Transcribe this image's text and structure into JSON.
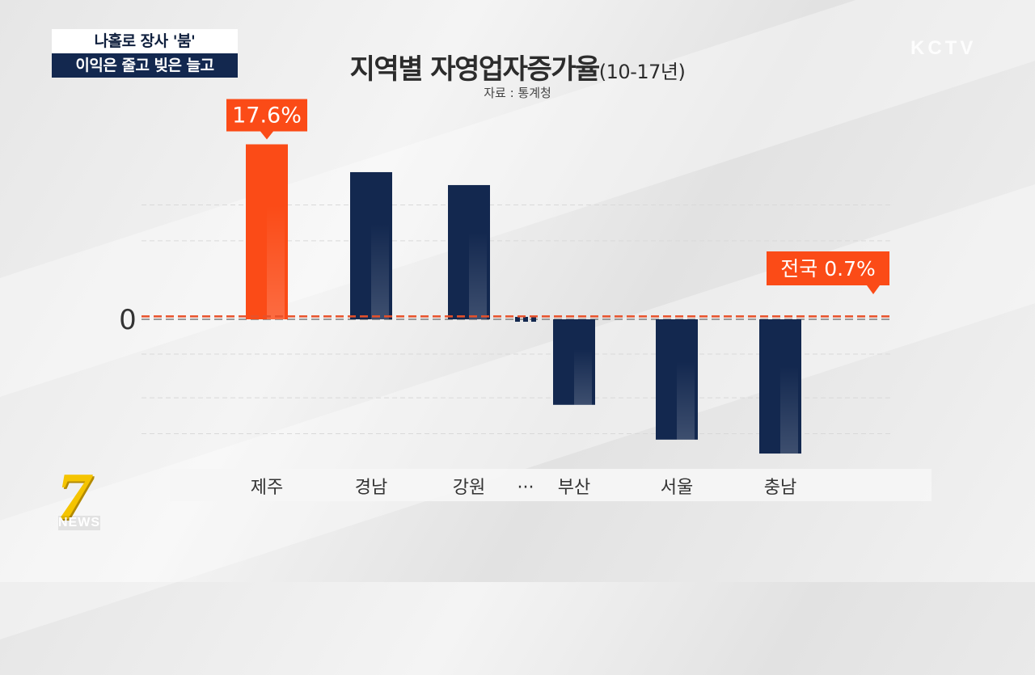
{
  "caption": {
    "line1": "나홀로 장사 '붐'",
    "line2": "이익은 줄고 빚은 늘고"
  },
  "logo": {
    "text": "KCTV"
  },
  "news_logo": {
    "number": "7",
    "text": "NEWS"
  },
  "header": {
    "title": "지역별 자영업자증가율",
    "period": "(10-17년)",
    "source": "자료 : 통계청"
  },
  "colors": {
    "highlight": "#fb4b17",
    "bar": "#13284f",
    "national_line": "#e8512a",
    "zero_line": "#9a9a9a",
    "label_box": "#fb4b17"
  },
  "chart_data": {
    "type": "bar",
    "title": "지역별 자영업자증가율(10-17년)",
    "categories": [
      "제주",
      "경남",
      "강원",
      "···",
      "부산",
      "서울",
      "충남"
    ],
    "values": [
      17.6,
      14.8,
      13.5,
      null,
      -8.6,
      -12.1,
      -13.5
    ],
    "highlight_index": 0,
    "highlight_label": "17.6%",
    "zero_tick": "0",
    "reference_line": {
      "value": 0.7,
      "label": "전국 0.7%"
    },
    "ylim": [
      -16,
      18
    ],
    "grid": true
  }
}
